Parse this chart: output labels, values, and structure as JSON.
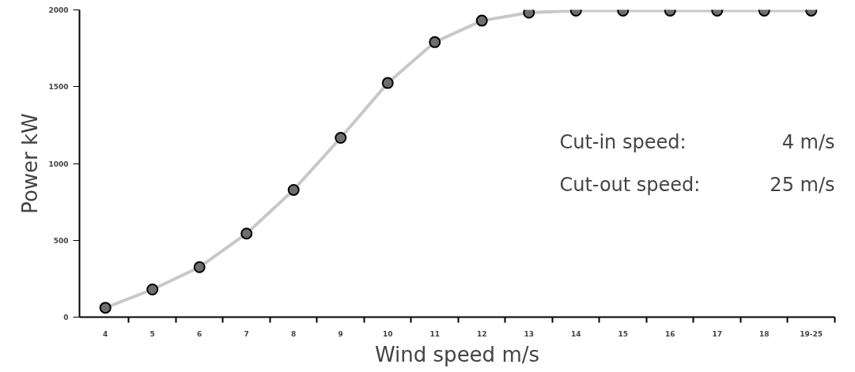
{
  "chart_data": {
    "type": "line",
    "xlabel": "Wind speed m/s",
    "ylabel": "Power kW",
    "categories": [
      "4",
      "5",
      "6",
      "7",
      "8",
      "9",
      "10",
      "11",
      "12",
      "13",
      "14",
      "15",
      "16",
      "17",
      "18",
      "19-25"
    ],
    "series": [
      {
        "color": "#c8c8c8",
        "values": [
          61,
          180,
          325,
          544,
          828,
          1167,
          1524,
          1790,
          1930,
          1982,
          1995,
          1995,
          1995,
          1995,
          1995,
          1995
        ]
      }
    ],
    "ylim": [
      0,
      2000
    ],
    "yticks": [
      0,
      500,
      1000,
      1500,
      2000
    ],
    "marker": "circle",
    "line_style": "solid",
    "grid": false,
    "annotations": [
      "Cut-in speed:",
      "4 m/s",
      "Cut-out speed:",
      "25 m/s"
    ]
  }
}
